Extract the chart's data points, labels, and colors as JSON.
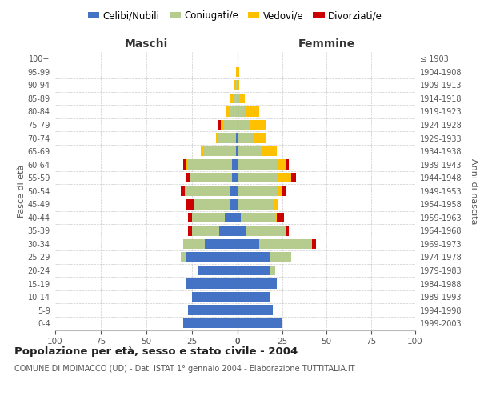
{
  "age_groups": [
    "0-4",
    "5-9",
    "10-14",
    "15-19",
    "20-24",
    "25-29",
    "30-34",
    "35-39",
    "40-44",
    "45-49",
    "50-54",
    "55-59",
    "60-64",
    "65-69",
    "70-74",
    "75-79",
    "80-84",
    "85-89",
    "90-94",
    "95-99",
    "100+"
  ],
  "birth_years": [
    "1999-2003",
    "1994-1998",
    "1989-1993",
    "1984-1988",
    "1979-1983",
    "1974-1978",
    "1969-1973",
    "1964-1968",
    "1959-1963",
    "1954-1958",
    "1949-1953",
    "1944-1948",
    "1939-1943",
    "1934-1938",
    "1929-1933",
    "1924-1928",
    "1919-1923",
    "1914-1918",
    "1909-1913",
    "1904-1908",
    "≤ 1903"
  ],
  "maschi": {
    "celibi": [
      30,
      27,
      25,
      28,
      22,
      28,
      18,
      10,
      7,
      4,
      4,
      3,
      3,
      1,
      1,
      0,
      0,
      0,
      0,
      0,
      0
    ],
    "coniugati": [
      0,
      0,
      0,
      0,
      0,
      3,
      12,
      15,
      18,
      20,
      24,
      23,
      24,
      18,
      10,
      8,
      5,
      2,
      1,
      0,
      0
    ],
    "vedovi": [
      0,
      0,
      0,
      0,
      0,
      0,
      0,
      0,
      0,
      0,
      1,
      0,
      1,
      1,
      1,
      1,
      1,
      2,
      1,
      1,
      0
    ],
    "divorziati": [
      0,
      0,
      0,
      0,
      0,
      0,
      0,
      2,
      2,
      4,
      2,
      2,
      2,
      0,
      0,
      2,
      0,
      0,
      0,
      0,
      0
    ]
  },
  "femmine": {
    "nubili": [
      25,
      20,
      18,
      22,
      18,
      18,
      12,
      5,
      2,
      0,
      0,
      0,
      0,
      0,
      0,
      0,
      0,
      0,
      0,
      0,
      0
    ],
    "coniugate": [
      0,
      0,
      0,
      0,
      3,
      12,
      30,
      22,
      19,
      20,
      22,
      23,
      22,
      14,
      9,
      7,
      4,
      1,
      0,
      0,
      0
    ],
    "vedove": [
      0,
      0,
      0,
      0,
      0,
      0,
      0,
      0,
      1,
      3,
      3,
      7,
      5,
      8,
      7,
      9,
      8,
      3,
      1,
      1,
      0
    ],
    "divorziate": [
      0,
      0,
      0,
      0,
      0,
      0,
      2,
      2,
      4,
      0,
      2,
      3,
      2,
      0,
      0,
      0,
      0,
      0,
      0,
      0,
      0
    ]
  },
  "colors": {
    "celibi": "#4472c4",
    "coniugati": "#b5cc8e",
    "vedovi": "#ffc000",
    "divorziati": "#cc0000"
  },
  "title": "Popolazione per età, sesso e stato civile - 2004",
  "subtitle": "COMUNE DI MOIMACCO (UD) - Dati ISTAT 1° gennaio 2004 - Elaborazione TUTTITALIA.IT",
  "label_maschi": "Maschi",
  "label_femmine": "Femmine",
  "ylabel_left": "Fasce di età",
  "ylabel_right": "Anni di nascita",
  "legend": [
    "Celibi/Nubili",
    "Coniugati/e",
    "Vedovi/e",
    "Divorziati/e"
  ],
  "xlim": 100,
  "bg": "#ffffff",
  "grid_color": "#cccccc"
}
